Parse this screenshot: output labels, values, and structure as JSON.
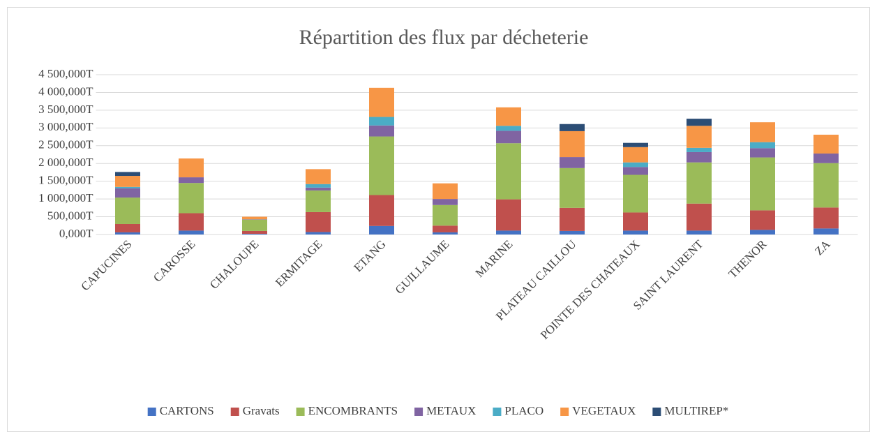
{
  "chart_data": {
    "type": "stacked_bar",
    "title": "Répartition des flux par décheterie",
    "categories": [
      "CAPUCINES",
      "CAROSSE",
      "CHALOUPE",
      "ERMITAGE",
      "ETANG",
      "GUILLAUME",
      "MARINE",
      "PLATEAU CAILLOU",
      "POINTE DES CHATEAUX",
      "SAINT LAURENT",
      "THENOR",
      "ZA"
    ],
    "series": [
      {
        "name": "CARTONS",
        "color": "#4472c4",
        "values": [
          60000,
          110000,
          20000,
          70000,
          240000,
          60000,
          110000,
          100000,
          110000,
          110000,
          130000,
          170000
        ]
      },
      {
        "name": "Gravats",
        "color": "#c0504d",
        "values": [
          235000,
          490000,
          80000,
          560000,
          870000,
          190000,
          880000,
          650000,
          510000,
          760000,
          550000,
          590000
        ]
      },
      {
        "name": "ENCOMBRANTS",
        "color": "#9bbb59",
        "values": [
          745000,
          850000,
          320000,
          610000,
          1650000,
          580000,
          1580000,
          1120000,
          1060000,
          1160000,
          1490000,
          1250000
        ]
      },
      {
        "name": "METAUX",
        "color": "#8064a2",
        "values": [
          260000,
          160000,
          10000,
          80000,
          310000,
          170000,
          350000,
          310000,
          220000,
          290000,
          260000,
          270000
        ]
      },
      {
        "name": "PLACO",
        "color": "#4bacc6",
        "values": [
          40000,
          0,
          0,
          100000,
          240000,
          0,
          140000,
          0,
          130000,
          120000,
          170000,
          0
        ]
      },
      {
        "name": "VEGETAUX",
        "color": "#f79646",
        "values": [
          310000,
          530000,
          70000,
          420000,
          820000,
          440000,
          520000,
          730000,
          430000,
          620000,
          560000,
          530000
        ]
      },
      {
        "name": "MULTIREP*",
        "color": "#2c4d75",
        "values": [
          110000,
          0,
          0,
          0,
          0,
          0,
          0,
          200000,
          120000,
          200000,
          0,
          0
        ]
      }
    ],
    "ylim": [
      0,
      4500000
    ],
    "yticks": [
      {
        "value": 0,
        "label": "0,000T"
      },
      {
        "value": 500000,
        "label": "500,000T"
      },
      {
        "value": 1000000,
        "label": "1 000,000T"
      },
      {
        "value": 1500000,
        "label": "1 500,000T"
      },
      {
        "value": 2000000,
        "label": "2 000,000T"
      },
      {
        "value": 2500000,
        "label": "2 500,000T"
      },
      {
        "value": 3000000,
        "label": "3 000,000T"
      },
      {
        "value": 3500000,
        "label": "3 500,000T"
      },
      {
        "value": 4000000,
        "label": "4 000,000T"
      },
      {
        "value": 4500000,
        "label": "4 500,000T"
      }
    ],
    "grid": true,
    "legend": "bottom"
  }
}
